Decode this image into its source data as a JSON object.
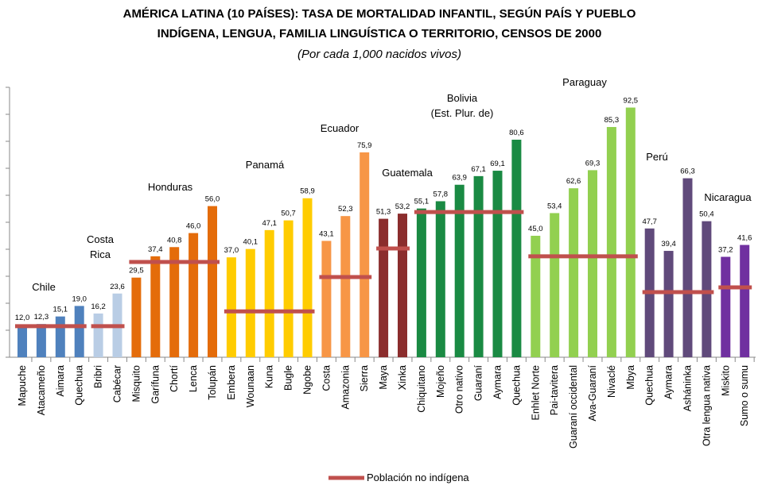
{
  "chart_data": {
    "type": "grouped-bar",
    "title": [
      "AMÉRICA LATINA (10 PAÍSES): TASA DE MORTALIDAD INFANTIL, SEGÚN PAÍS Y PUEBLO",
      "INDÍGENA, LENGUA, FAMILIA LINGUÍSTICA O TERRITORIO, CENSOS DE 2000"
    ],
    "subtitle": "(Por cada 1,000 nacidos vivos)",
    "reference_name": "Población no indígena",
    "reference_color": "#c0504d",
    "ylim": [
      0,
      100
    ],
    "yticks": [
      0,
      10,
      20,
      30,
      40,
      50,
      60,
      70,
      80,
      90,
      100
    ],
    "groups": [
      {
        "label": [
          "Chile"
        ],
        "color": "#4f81bd",
        "reference": 11.5,
        "categories": [
          "Mapuche",
          "Atacameño",
          "Aimara",
          "Quechua"
        ],
        "values": [
          12.0,
          12.3,
          15.1,
          19.0
        ],
        "value_labels": [
          "12,0",
          "12,3",
          "15,1",
          "19,0"
        ]
      },
      {
        "label": [
          "Costa",
          "Rica"
        ],
        "color": "#b9cde5",
        "reference": 11.5,
        "categories": [
          "Bribri",
          "Cabécar"
        ],
        "values": [
          16.2,
          23.6
        ],
        "value_labels": [
          "16,2",
          "23,6"
        ]
      },
      {
        "label": [
          "Honduras"
        ],
        "color": "#e46c0a",
        "reference": 35.3,
        "categories": [
          "Misquito",
          "Garífuna",
          "Chortí",
          "Lenca",
          "Tolupán"
        ],
        "values": [
          29.5,
          37.4,
          40.8,
          46.0,
          56.0
        ],
        "value_labels": [
          "29,5",
          "37,4",
          "40,8",
          "46,0",
          "56,0"
        ]
      },
      {
        "label": [
          "Panamá"
        ],
        "color": "#ffcc00",
        "reference": 17.0,
        "categories": [
          "Embera",
          "Wounaan",
          "Kuna",
          "Bugle",
          "Ngobe"
        ],
        "values": [
          37.0,
          40.1,
          47.1,
          50.7,
          58.9
        ],
        "value_labels": [
          "37,0",
          "40,1",
          "47,1",
          "50,7",
          "58,9"
        ]
      },
      {
        "label": [
          "Ecuador"
        ],
        "color": "#f79646",
        "reference": 29.7,
        "categories": [
          "Costa",
          "Amazonia",
          "Sierra"
        ],
        "values": [
          43.1,
          52.3,
          75.9
        ],
        "value_labels": [
          "43,1",
          "52,3",
          "75,9"
        ]
      },
      {
        "label": [
          "Guatemala"
        ],
        "color": "#8b2d2d",
        "reference": 40.3,
        "categories": [
          "Maya",
          "Xinka"
        ],
        "values": [
          51.3,
          53.2
        ],
        "value_labels": [
          "51,3",
          "53,2"
        ]
      },
      {
        "label": [
          "Bolivia",
          "(Est. Plur. de)"
        ],
        "color": "#1a8a43",
        "reference": 53.8,
        "categories": [
          "Chiquitano",
          "Mojeño",
          "Otro nativo",
          "Guaraní",
          "Aymara",
          "Quechua"
        ],
        "values": [
          55.1,
          57.8,
          63.9,
          67.1,
          69.1,
          80.6
        ],
        "value_labels": [
          "55,1",
          "57,8",
          "63,9",
          "67,1",
          "69,1",
          "80,6"
        ]
      },
      {
        "label": [
          "Paraguay"
        ],
        "color": "#92d050",
        "reference": 37.4,
        "categories": [
          "Enhlet Norte",
          "Pai-tavitera",
          "Guaraní occidental",
          "Ava-Guaraní",
          "Nivaclé",
          "Mbya"
        ],
        "values": [
          45.0,
          53.4,
          62.6,
          69.3,
          85.3,
          92.5
        ],
        "value_labels": [
          "45,0",
          "53,4",
          "62,6",
          "69,3",
          "85,3",
          "92,5"
        ]
      },
      {
        "label": [
          "Perú"
        ],
        "color": "#604a7b",
        "reference": 24.1,
        "categories": [
          "Quechua",
          "Aymara",
          "Asháninka",
          "Otra lengua nativa"
        ],
        "values": [
          47.7,
          39.4,
          66.3,
          50.4
        ],
        "value_labels": [
          "47,7",
          "39,4",
          "66,3",
          "50,4"
        ]
      },
      {
        "label": [
          "Nicaragua"
        ],
        "color": "#7030a0",
        "reference": 25.9,
        "categories": [
          "Miskito",
          "Sumo o sumu"
        ],
        "values": [
          37.2,
          41.6
        ],
        "value_labels": [
          "37,2",
          "41,6"
        ]
      }
    ]
  }
}
